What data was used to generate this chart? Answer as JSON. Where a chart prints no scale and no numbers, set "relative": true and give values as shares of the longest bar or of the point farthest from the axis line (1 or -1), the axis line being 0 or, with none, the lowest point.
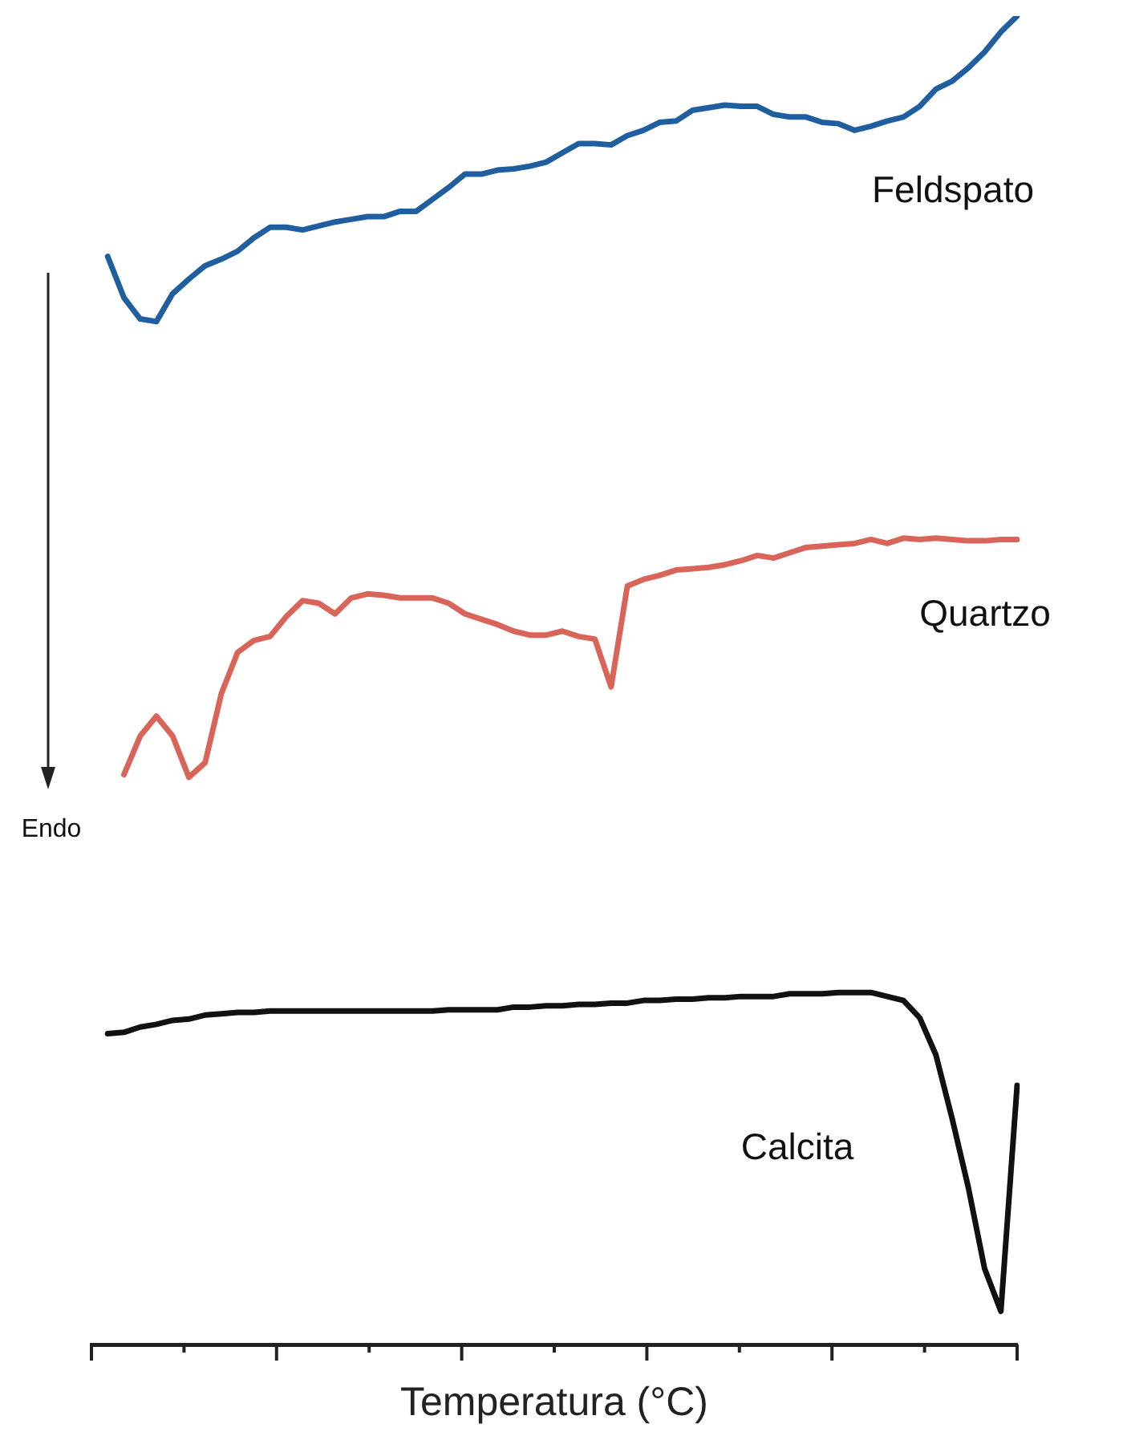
{
  "chart_data": {
    "type": "line",
    "relative": true,
    "xlabel": "Temperatura (°C)",
    "annotations": [
      "Endo"
    ],
    "legend": false,
    "grid": false,
    "marker": "none",
    "line_style": "solid",
    "tick_labels": false,
    "categories": [
      null,
      null,
      null,
      null,
      null,
      null,
      null,
      null,
      null,
      null,
      null,
      null,
      null,
      null,
      null,
      null,
      null,
      null,
      null,
      null,
      null,
      null,
      null,
      null,
      null,
      null,
      null,
      null,
      null,
      null,
      null,
      null,
      null,
      null,
      null,
      null,
      null,
      null,
      null,
      null,
      null,
      null,
      null,
      null,
      null,
      null,
      null,
      null,
      null,
      null,
      null,
      null,
      null,
      null,
      null,
      null,
      null,
      null
    ],
    "series": [
      {
        "name": "Feldspato",
        "color": "#1f5fa0",
        "values": [
          null,
          0.819,
          0.788,
          0.772,
          0.77,
          0.791,
          0.802,
          0.812,
          0.817,
          0.823,
          0.833,
          0.841,
          0.841,
          0.839,
          0.842,
          0.845,
          0.847,
          0.849,
          0.849,
          0.853,
          0.853,
          0.862,
          0.871,
          0.881,
          0.881,
          0.884,
          0.885,
          0.887,
          0.89,
          0.897,
          0.904,
          0.904,
          0.903,
          0.91,
          0.914,
          0.92,
          0.921,
          0.929,
          0.931,
          0.933,
          0.932,
          0.932,
          0.926,
          0.924,
          0.924,
          0.92,
          0.919,
          0.914,
          0.917,
          0.921,
          0.924,
          0.932,
          0.945,
          0.951,
          0.961,
          0.973,
          0.988,
          1
        ]
      },
      {
        "name": "Quartzo",
        "color": "#d9645a",
        "values": [
          null,
          null,
          0.429,
          0.458,
          0.473,
          0.458,
          0.427,
          0.438,
          0.49,
          0.521,
          0.53,
          0.533,
          0.548,
          0.56,
          0.558,
          0.55,
          0.562,
          0.565,
          0.564,
          0.562,
          0.562,
          0.562,
          0.558,
          0.55,
          0.546,
          0.542,
          0.537,
          0.534,
          0.534,
          0.537,
          0.533,
          0.531,
          0.495,
          0.571,
          0.576,
          0.579,
          0.583,
          0.584,
          0.585,
          0.587,
          0.59,
          0.594,
          0.592,
          0.596,
          0.6,
          0.601,
          0.602,
          0.603,
          0.606,
          0.603,
          0.607,
          0.606,
          0.607,
          0.606,
          0.605,
          0.605,
          0.606,
          0.606
        ]
      },
      {
        "name": "Calcita",
        "color": "#111111",
        "values": [
          null,
          0.234,
          0.235,
          0.239,
          0.241,
          0.244,
          0.245,
          0.248,
          0.249,
          0.25,
          0.25,
          0.251,
          0.251,
          0.251,
          0.251,
          0.251,
          0.251,
          0.251,
          0.251,
          0.251,
          0.251,
          0.251,
          0.252,
          0.252,
          0.252,
          0.252,
          0.254,
          0.254,
          0.255,
          0.255,
          0.256,
          0.256,
          0.257,
          0.257,
          0.259,
          0.259,
          0.26,
          0.26,
          0.261,
          0.261,
          0.262,
          0.262,
          0.262,
          0.264,
          0.264,
          0.264,
          0.265,
          0.265,
          0.265,
          0.262,
          0.259,
          0.246,
          0.218,
          0.17,
          0.118,
          0.057,
          0.025,
          0.195
        ]
      }
    ]
  }
}
